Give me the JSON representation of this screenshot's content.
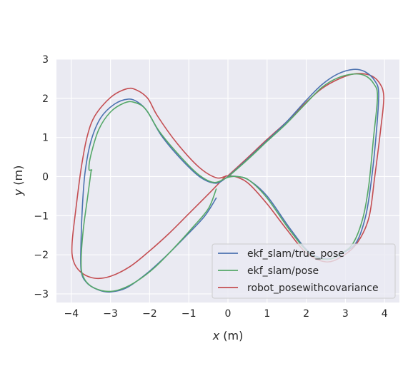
{
  "chart_data": {
    "type": "line",
    "title": "",
    "xlabel_italic": "x",
    "xlabel_unit": " (m)",
    "ylabel_italic": "y",
    "ylabel_unit": " (m)",
    "xlim": [
      -4.38,
      4.38
    ],
    "ylim": [
      -3.22,
      3.0
    ],
    "xticks": [
      -4,
      -3,
      -2,
      -1,
      0,
      1,
      2,
      3,
      4
    ],
    "yticks": [
      -3,
      -2,
      -1,
      0,
      1,
      2,
      3
    ],
    "xtick_labels": [
      "−4",
      "−3",
      "−2",
      "−1",
      "0",
      "1",
      "2",
      "3",
      "4"
    ],
    "ytick_labels": [
      "−3",
      "−2",
      "−1",
      "0",
      "1",
      "2",
      "3"
    ],
    "grid": true,
    "legend_position": "lower-right",
    "series": [
      {
        "name": "ekf_slam/true_pose",
        "color": "#4c72b0",
        "points": [
          [
            0.0,
            0.0
          ],
          [
            0.5,
            0.45
          ],
          [
            1.0,
            0.92
          ],
          [
            1.5,
            1.4
          ],
          [
            2.0,
            1.95
          ],
          [
            2.4,
            2.35
          ],
          [
            2.8,
            2.62
          ],
          [
            3.2,
            2.74
          ],
          [
            3.5,
            2.68
          ],
          [
            3.75,
            2.45
          ],
          [
            3.85,
            2.1
          ],
          [
            3.78,
            1.0
          ],
          [
            3.65,
            -0.2
          ],
          [
            3.52,
            -1.0
          ],
          [
            3.3,
            -1.65
          ],
          [
            3.0,
            -1.92
          ],
          [
            2.6,
            -2.1
          ],
          [
            2.1,
            -1.95
          ],
          [
            1.6,
            -1.35
          ],
          [
            1.0,
            -0.5
          ],
          [
            0.55,
            -0.1
          ],
          [
            0.25,
            0.0
          ],
          [
            0.0,
            -0.01
          ],
          [
            -0.3,
            -0.17
          ],
          [
            -0.7,
            -0.02
          ],
          [
            -1.2,
            0.45
          ],
          [
            -1.7,
            1.05
          ],
          [
            -2.05,
            1.65
          ],
          [
            -2.3,
            1.9
          ],
          [
            -2.55,
            1.98
          ],
          [
            -2.9,
            1.85
          ],
          [
            -3.25,
            1.5
          ],
          [
            -3.5,
            0.9
          ],
          [
            -3.65,
            0.1
          ],
          [
            -3.72,
            -0.8
          ],
          [
            -3.75,
            -1.6
          ],
          [
            -3.75,
            -2.4
          ],
          [
            -3.6,
            -2.72
          ],
          [
            -3.3,
            -2.9
          ],
          [
            -3.0,
            -2.95
          ],
          [
            -2.6,
            -2.85
          ],
          [
            -2.1,
            -2.5
          ],
          [
            -1.6,
            -2.05
          ],
          [
            -1.1,
            -1.55
          ],
          [
            -0.6,
            -1.02
          ],
          [
            -0.3,
            -0.55
          ]
        ]
      },
      {
        "name": "ekf_slam/pose",
        "color": "#55a868",
        "points": [
          [
            0.0,
            -0.01
          ],
          [
            0.5,
            0.43
          ],
          [
            1.0,
            0.9
          ],
          [
            1.5,
            1.36
          ],
          [
            2.0,
            1.88
          ],
          [
            2.4,
            2.28
          ],
          [
            2.8,
            2.52
          ],
          [
            3.2,
            2.62
          ],
          [
            3.5,
            2.58
          ],
          [
            3.72,
            2.38
          ],
          [
            3.82,
            2.05
          ],
          [
            3.72,
            1.0
          ],
          [
            3.6,
            -0.2
          ],
          [
            3.45,
            -1.05
          ],
          [
            3.2,
            -1.7
          ],
          [
            2.9,
            -1.96
          ],
          [
            2.55,
            -2.12
          ],
          [
            2.1,
            -1.98
          ],
          [
            1.6,
            -1.4
          ],
          [
            1.0,
            -0.55
          ],
          [
            0.55,
            -0.1
          ],
          [
            0.25,
            0.0
          ],
          [
            0.0,
            -0.02
          ],
          [
            -0.35,
            -0.15
          ],
          [
            -0.75,
            0.05
          ],
          [
            -1.25,
            0.55
          ],
          [
            -1.75,
            1.15
          ],
          [
            -2.1,
            1.72
          ],
          [
            -2.4,
            1.9
          ],
          [
            -2.65,
            1.88
          ],
          [
            -3.0,
            1.65
          ],
          [
            -3.3,
            1.2
          ],
          [
            -3.5,
            0.55
          ],
          [
            -3.55,
            0.19
          ],
          [
            -3.48,
            0.17
          ],
          [
            -3.5,
            0.1
          ],
          [
            -3.58,
            -0.5
          ],
          [
            -3.7,
            -1.4
          ],
          [
            -3.75,
            -2.2
          ],
          [
            -3.7,
            -2.55
          ],
          [
            -3.5,
            -2.8
          ],
          [
            -3.15,
            -2.93
          ],
          [
            -2.8,
            -2.9
          ],
          [
            -2.4,
            -2.72
          ],
          [
            -1.9,
            -2.35
          ],
          [
            -1.4,
            -1.85
          ],
          [
            -0.9,
            -1.3
          ],
          [
            -0.5,
            -0.82
          ],
          [
            -0.3,
            -0.32
          ]
        ]
      },
      {
        "name": "robot_posewithcovariance",
        "color": "#c44e52",
        "points": [
          [
            0.0,
            0.02
          ],
          [
            0.5,
            0.48
          ],
          [
            1.0,
            0.95
          ],
          [
            1.5,
            1.4
          ],
          [
            2.0,
            1.9
          ],
          [
            2.4,
            2.25
          ],
          [
            2.8,
            2.48
          ],
          [
            3.2,
            2.62
          ],
          [
            3.6,
            2.6
          ],
          [
            3.85,
            2.42
          ],
          [
            3.98,
            2.05
          ],
          [
            3.9,
            1.2
          ],
          [
            3.75,
            0.0
          ],
          [
            3.6,
            -1.05
          ],
          [
            3.3,
            -1.7
          ],
          [
            2.9,
            -2.05
          ],
          [
            2.5,
            -2.18
          ],
          [
            2.0,
            -1.95
          ],
          [
            1.5,
            -1.35
          ],
          [
            1.0,
            -0.7
          ],
          [
            0.55,
            -0.2
          ],
          [
            0.25,
            -0.02
          ],
          [
            0.0,
            0.02
          ],
          [
            -0.3,
            -0.03
          ],
          [
            -0.75,
            0.25
          ],
          [
            -1.3,
            0.85
          ],
          [
            -1.8,
            1.55
          ],
          [
            -2.05,
            2.0
          ],
          [
            -2.35,
            2.22
          ],
          [
            -2.6,
            2.24
          ],
          [
            -3.0,
            2.02
          ],
          [
            -3.4,
            1.55
          ],
          [
            -3.6,
            1.0
          ],
          [
            -3.75,
            0.2
          ],
          [
            -3.88,
            -0.8
          ],
          [
            -3.98,
            -1.7
          ],
          [
            -3.95,
            -2.15
          ],
          [
            -3.75,
            -2.45
          ],
          [
            -3.4,
            -2.6
          ],
          [
            -3.0,
            -2.55
          ],
          [
            -2.5,
            -2.3
          ],
          [
            -2.0,
            -1.9
          ],
          [
            -1.5,
            -1.45
          ],
          [
            -1.0,
            -0.95
          ],
          [
            -0.5,
            -0.45
          ],
          [
            -0.05,
            0.02
          ]
        ]
      }
    ]
  }
}
